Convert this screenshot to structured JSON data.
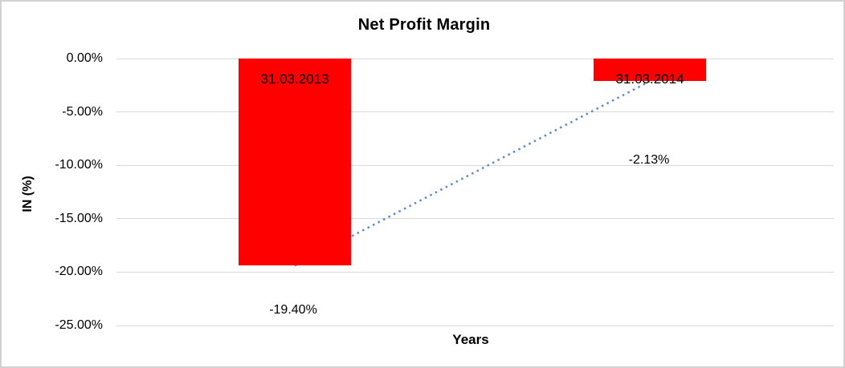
{
  "chart_data": {
    "type": "bar",
    "title": "Net Profit Margin",
    "xlabel": "Years",
    "ylabel": "IN (%)",
    "categories": [
      "31.03.2013",
      "31.03.2014"
    ],
    "values": [
      -19.4,
      -2.13
    ],
    "value_labels": [
      "-19.40%",
      "-2.13%"
    ],
    "yticks": [
      0,
      -5,
      -10,
      -15,
      -20,
      -25
    ],
    "ytick_labels": [
      "0.00%",
      "-5.00%",
      "-10.00%",
      "-15.00%",
      "-20.00%",
      "-25.00%"
    ],
    "ylim": [
      -25,
      0
    ],
    "grid": true,
    "legend": "none",
    "bar_color": "#ff0000",
    "gridline_color": "#d9d9d9",
    "trendline": {
      "type": "linear",
      "style": "dotted",
      "color": "#5b8ac6"
    }
  }
}
